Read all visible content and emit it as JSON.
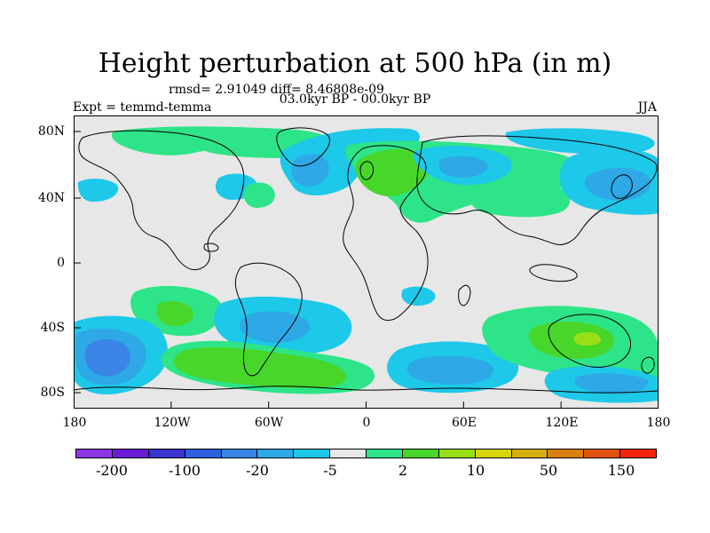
{
  "title": "Height perturbation at 500 hPa (in m)",
  "stats_text": "rmsd= 2.91049 diff= 8.46808e-09",
  "subtitle": "03.0kyr BP - 00.0kyr BP",
  "experiment": "Expt = temmd-temma",
  "season": "JJA",
  "map": {
    "lat_labels": [
      "80N",
      "40N",
      "0",
      "40S",
      "80S"
    ],
    "lon_labels": [
      "180",
      "120W",
      "60W",
      "0",
      "60E",
      "120E",
      "180"
    ],
    "background_color": "#e7e7e7",
    "coast_color": "#000000"
  },
  "colorbar": {
    "labels": [
      "-200",
      "-100",
      "-20",
      "-5",
      "2",
      "10",
      "50",
      "150"
    ],
    "colors": [
      "#8e35e6",
      "#6b1bd6",
      "#3a33cf",
      "#2d5fe0",
      "#3a85e6",
      "#2ea8e7",
      "#1ec8e8",
      "#e7e7e7",
      "#2ee488",
      "#48d62b",
      "#98df16",
      "#d9d50d",
      "#d7ae10",
      "#da7f12",
      "#e25311",
      "#f2240b"
    ]
  },
  "fields": {
    "negative_strong": "#3a85e6",
    "negative": "#2ea8e7",
    "negative_weak": "#1ec8e8",
    "positive_weak": "#2ee488",
    "positive": "#48d62b",
    "positive_strong": "#98df16",
    "positive_peak": "#d9d50d"
  }
}
